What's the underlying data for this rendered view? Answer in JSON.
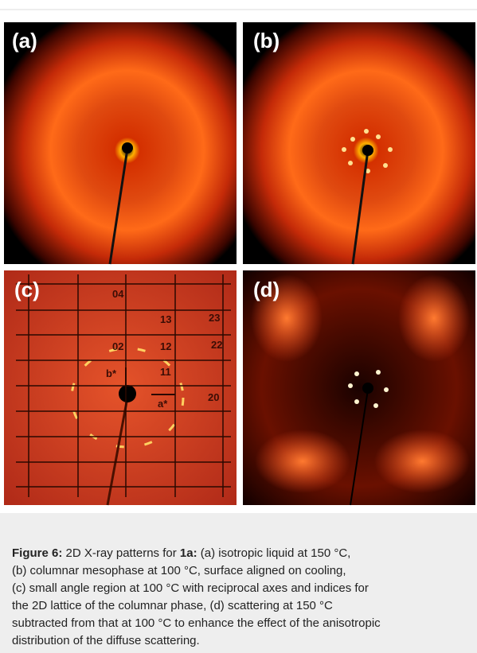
{
  "panels": {
    "a": "(a)",
    "b": "(b)",
    "c": "(c)",
    "d": "(d)"
  },
  "indices": [
    "04",
    "13",
    "23",
    "02",
    "12",
    "22",
    "b*",
    "11",
    "a*",
    "20"
  ],
  "caption": {
    "label": "Figure 6:",
    "intro": "2D X-ray patterns for",
    "compound": "1a:",
    "lines": [
      "(a) isotropic liquid at 150 °C,",
      "(b) columnar mesophase at 100 °C, surface aligned on cooling,",
      "(c) small angle region at 100 °C with reciprocal axes and indices for",
      "the 2D lattice of the columnar phase, (d) scattering at 150 °C",
      "subtracted from that at 100 °C to enhance the effect of the anisotropic",
      "distribution of the diffuse scattering."
    ]
  }
}
